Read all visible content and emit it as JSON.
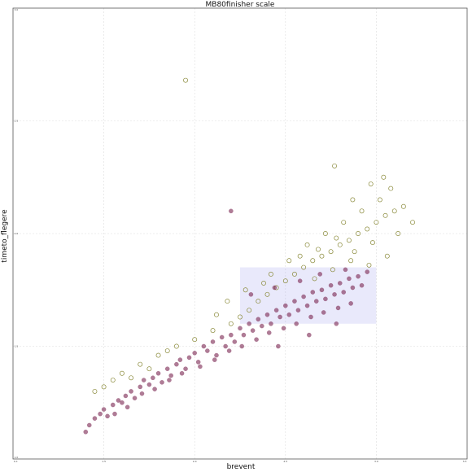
{
  "chart_data": {
    "type": "scatter",
    "title": "MB80finisher scale",
    "xlabel": "brevent",
    "ylabel": "timeto_flegere",
    "xlim": [
      1.0,
      3.5
    ],
    "ylim": [
      1.0,
      3.0
    ],
    "xticks": [
      1.0,
      1.5,
      2.0,
      2.5,
      3.0,
      3.5
    ],
    "yticks": [
      1.0,
      1.5,
      2.0,
      2.5,
      3.0
    ],
    "xtick_labels": [
      "1.0",
      "1.5",
      "2.0",
      "2.5",
      "3.0",
      "3.5"
    ],
    "ytick_labels": [
      "1.0",
      "1.5",
      "2.0",
      "2.5",
      "3.0"
    ],
    "grid": true,
    "highlight_region": {
      "x": [
        2.25,
        3.0
      ],
      "y": [
        1.6,
        1.85
      ],
      "color": "#9999ee"
    },
    "colors": {
      "filled": "#7a2450",
      "hollow": "#8a8a3a",
      "background": "#ffffff"
    },
    "series": [
      {
        "marker": "filled",
        "points": [
          [
            1.4,
            1.12
          ],
          [
            1.42,
            1.15
          ],
          [
            1.45,
            1.18
          ],
          [
            1.48,
            1.2
          ],
          [
            1.5,
            1.22
          ],
          [
            1.52,
            1.19
          ],
          [
            1.55,
            1.24
          ],
          [
            1.58,
            1.26
          ],
          [
            1.6,
            1.25
          ],
          [
            1.62,
            1.28
          ],
          [
            1.65,
            1.3
          ],
          [
            1.67,
            1.27
          ],
          [
            1.7,
            1.32
          ],
          [
            1.72,
            1.35
          ],
          [
            1.75,
            1.33
          ],
          [
            1.77,
            1.36
          ],
          [
            1.8,
            1.38
          ],
          [
            1.82,
            1.34
          ],
          [
            1.85,
            1.4
          ],
          [
            1.87,
            1.37
          ],
          [
            1.9,
            1.42
          ],
          [
            1.92,
            1.44
          ],
          [
            1.95,
            1.4
          ],
          [
            1.97,
            1.45
          ],
          [
            2.0,
            1.47
          ],
          [
            2.02,
            1.43
          ],
          [
            2.05,
            1.5
          ],
          [
            2.07,
            1.48
          ],
          [
            2.1,
            1.52
          ],
          [
            2.12,
            1.46
          ],
          [
            2.15,
            1.54
          ],
          [
            2.17,
            1.5
          ],
          [
            2.2,
            1.55
          ],
          [
            2.22,
            1.52
          ],
          [
            2.25,
            1.58
          ],
          [
            2.27,
            1.55
          ],
          [
            2.3,
            1.6
          ],
          [
            2.32,
            1.57
          ],
          [
            2.35,
            1.62
          ],
          [
            2.37,
            1.59
          ],
          [
            2.4,
            1.64
          ],
          [
            2.42,
            1.6
          ],
          [
            2.45,
            1.66
          ],
          [
            2.47,
            1.63
          ],
          [
            2.5,
            1.68
          ],
          [
            2.52,
            1.64
          ],
          [
            2.55,
            1.7
          ],
          [
            2.57,
            1.66
          ],
          [
            2.6,
            1.72
          ],
          [
            2.62,
            1.68
          ],
          [
            2.65,
            1.74
          ],
          [
            2.67,
            1.7
          ],
          [
            2.7,
            1.75
          ],
          [
            2.72,
            1.71
          ],
          [
            2.75,
            1.77
          ],
          [
            2.77,
            1.73
          ],
          [
            2.8,
            1.78
          ],
          [
            2.82,
            1.74
          ],
          [
            2.85,
            1.8
          ],
          [
            2.87,
            1.76
          ],
          [
            2.9,
            1.81
          ],
          [
            2.92,
            1.77
          ],
          [
            2.95,
            1.83
          ],
          [
            1.56,
            1.2
          ],
          [
            1.63,
            1.23
          ],
          [
            1.71,
            1.29
          ],
          [
            1.78,
            1.31
          ],
          [
            1.86,
            1.35
          ],
          [
            1.93,
            1.38
          ],
          [
            2.03,
            1.41
          ],
          [
            2.11,
            1.44
          ],
          [
            2.19,
            1.48
          ],
          [
            2.26,
            1.5
          ],
          [
            2.34,
            1.53
          ],
          [
            2.41,
            1.56
          ],
          [
            2.49,
            1.58
          ],
          [
            2.56,
            1.6
          ],
          [
            2.64,
            1.63
          ],
          [
            2.71,
            1.65
          ],
          [
            2.79,
            1.67
          ],
          [
            2.86,
            1.69
          ],
          [
            2.31,
            1.73
          ],
          [
            2.44,
            1.76
          ],
          [
            2.58,
            1.79
          ],
          [
            2.69,
            1.82
          ],
          [
            2.83,
            1.84
          ],
          [
            2.46,
            1.5
          ],
          [
            2.63,
            1.55
          ],
          [
            2.78,
            1.6
          ],
          [
            2.2,
            2.1
          ]
        ]
      },
      {
        "marker": "hollow",
        "points": [
          [
            1.45,
            1.3
          ],
          [
            1.5,
            1.32
          ],
          [
            1.55,
            1.35
          ],
          [
            1.6,
            1.38
          ],
          [
            1.65,
            1.36
          ],
          [
            1.7,
            1.42
          ],
          [
            1.75,
            1.4
          ],
          [
            1.8,
            1.46
          ],
          [
            1.85,
            1.48
          ],
          [
            1.9,
            1.5
          ],
          [
            2.0,
            1.53
          ],
          [
            2.1,
            1.57
          ],
          [
            2.2,
            1.6
          ],
          [
            2.25,
            1.63
          ],
          [
            2.3,
            1.66
          ],
          [
            2.35,
            1.7
          ],
          [
            2.4,
            1.73
          ],
          [
            2.45,
            1.76
          ],
          [
            2.5,
            1.79
          ],
          [
            2.55,
            1.82
          ],
          [
            2.6,
            1.85
          ],
          [
            2.65,
            1.88
          ],
          [
            2.7,
            1.9
          ],
          [
            2.75,
            1.92
          ],
          [
            2.8,
            1.95
          ],
          [
            2.85,
            1.97
          ],
          [
            2.9,
            2.0
          ],
          [
            2.95,
            2.02
          ],
          [
            3.0,
            2.05
          ],
          [
            3.05,
            2.08
          ],
          [
            3.1,
            2.1
          ],
          [
            3.15,
            2.12
          ],
          [
            2.62,
            1.95
          ],
          [
            2.72,
            2.0
          ],
          [
            2.82,
            2.05
          ],
          [
            2.92,
            2.1
          ],
          [
            3.02,
            2.15
          ],
          [
            2.87,
            2.15
          ],
          [
            2.97,
            2.22
          ],
          [
            2.77,
            2.3
          ],
          [
            3.04,
            2.25
          ],
          [
            3.08,
            2.2
          ],
          [
            2.52,
            1.88
          ],
          [
            2.42,
            1.82
          ],
          [
            2.58,
            1.9
          ],
          [
            2.68,
            1.93
          ],
          [
            2.78,
            1.98
          ],
          [
            2.88,
            1.92
          ],
          [
            2.98,
            1.96
          ],
          [
            3.06,
            1.9
          ],
          [
            2.66,
            1.8
          ],
          [
            2.76,
            1.84
          ],
          [
            2.86,
            1.88
          ],
          [
            2.96,
            1.86
          ],
          [
            2.12,
            1.64
          ],
          [
            2.18,
            1.7
          ],
          [
            2.28,
            1.75
          ],
          [
            2.38,
            1.78
          ],
          [
            3.12,
            2.0
          ],
          [
            3.2,
            2.05
          ],
          [
            1.95,
            2.68
          ]
        ]
      }
    ]
  }
}
